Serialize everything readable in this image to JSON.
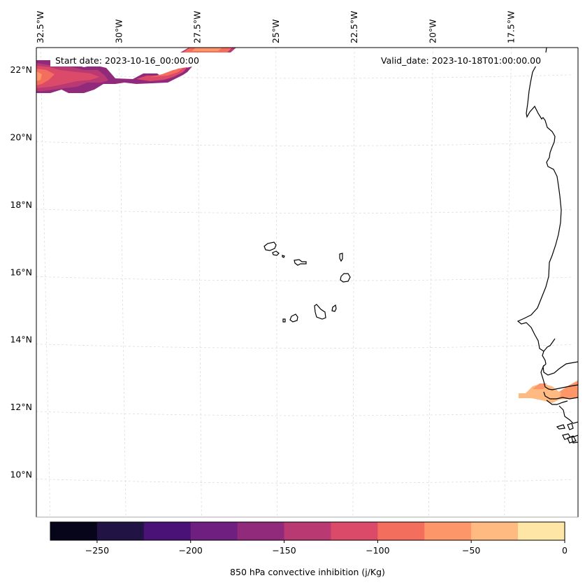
{
  "figure": {
    "annotations": {
      "start_date": "Start date: 2023-10-16_00:00:00",
      "valid_date": "Valid_date: 2023-10-18T01:00:00.00"
    },
    "map": {
      "projection": "lambert-conformal",
      "lon_range": [
        -33.0,
        -15.0
      ],
      "lat_range": [
        8.8,
        22.7
      ],
      "longitude_ticks": [
        {
          "value": -32.5,
          "label": "32.5°W"
        },
        {
          "value": -30,
          "label": "30°W"
        },
        {
          "value": -27.5,
          "label": "27.5°W"
        },
        {
          "value": -25,
          "label": "25°W"
        },
        {
          "value": -22.5,
          "label": "22.5°W"
        },
        {
          "value": -20,
          "label": "20°W"
        },
        {
          "value": -17.5,
          "label": "17.5°W"
        }
      ],
      "latitude_ticks": [
        {
          "value": 22,
          "label": "22°N"
        },
        {
          "value": 20,
          "label": "20°N"
        },
        {
          "value": 18,
          "label": "18°N"
        },
        {
          "value": 16,
          "label": "16°N"
        },
        {
          "value": 14,
          "label": "14°N"
        },
        {
          "value": 12,
          "label": "12°N"
        },
        {
          "value": 10,
          "label": "10°N"
        }
      ],
      "gridlines": true,
      "features": [
        "Cape Verde islands coastline",
        "West African coastline"
      ]
    },
    "colorbar": {
      "label": "850 hPa convective inhibition (j/Kg)",
      "levels": [
        -275,
        -250,
        -225,
        -200,
        -175,
        -150,
        -125,
        -100,
        -75,
        -50,
        -25,
        0
      ],
      "colors": [
        "#07051a",
        "#211444",
        "#4a1177",
        "#6f1f80",
        "#922a7b",
        "#b93a73",
        "#dc4a6a",
        "#f36e5d",
        "#fd9668",
        "#feba80",
        "#fde6a6"
      ],
      "tick_values": [
        -250,
        -200,
        -150,
        -100,
        -50,
        0
      ],
      "tick_labels": [
        "−250",
        "−200",
        "−150",
        "−100",
        "−50",
        "0"
      ]
    }
  },
  "chart_data": {
    "type": "heatmap",
    "title": "",
    "variable": "850 hPa convective inhibition",
    "units": "j/Kg",
    "xlabel": "",
    "ylabel": "",
    "colorbar_range": [
      -275,
      0
    ],
    "grid": true,
    "regions": [
      {
        "name": "northwest band near 22°N, 33°W–27°W",
        "value_range": [
          -175,
          -75
        ],
        "dominant_level": -125
      },
      {
        "name": "top edge near 27.5°W, 22.7°N",
        "value_range": [
          -125,
          -75
        ],
        "dominant_level": -100
      },
      {
        "name": "Senegal/Gambia band near 12.5°N, 16°W–15°W",
        "value_range": [
          -75,
          -25
        ],
        "dominant_level": -50
      }
    ],
    "annotations": [
      "Start date: 2023-10-16_00:00:00",
      "Valid_date: 2023-10-18T01:00:00.00"
    ]
  }
}
